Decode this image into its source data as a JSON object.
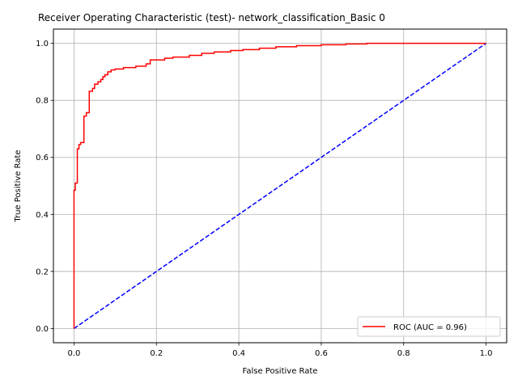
{
  "chart_data": {
    "type": "line",
    "title": "Receiver Operating Characteristic (test)- network_classification_Basic 0",
    "xlabel": "False Positive Rate",
    "ylabel": "True Positive Rate",
    "xlim": [
      -0.05,
      1.05
    ],
    "ylim": [
      -0.05,
      1.05
    ],
    "xticks": [
      "0.0",
      "0.2",
      "0.4",
      "0.6",
      "0.8",
      "1.0"
    ],
    "yticks": [
      "0.0",
      "0.2",
      "0.4",
      "0.6",
      "0.8",
      "1.0"
    ],
    "grid": true,
    "legend_position": "lower-right",
    "series": [
      {
        "name": "ROC (AUC = 0.96)",
        "color": "#ff0000",
        "style": "solid-step",
        "x": [
          0.0,
          0.0,
          0.003,
          0.003,
          0.008,
          0.008,
          0.012,
          0.012,
          0.016,
          0.016,
          0.024,
          0.024,
          0.03,
          0.03,
          0.037,
          0.037,
          0.045,
          0.045,
          0.05,
          0.05,
          0.058,
          0.058,
          0.065,
          0.065,
          0.07,
          0.07,
          0.075,
          0.075,
          0.082,
          0.082,
          0.09,
          0.09,
          0.1,
          0.1,
          0.12,
          0.12,
          0.15,
          0.15,
          0.175,
          0.175,
          0.185,
          0.185,
          0.22,
          0.22,
          0.24,
          0.24,
          0.28,
          0.28,
          0.31,
          0.31,
          0.34,
          0.34,
          0.38,
          0.38,
          0.41,
          0.41,
          0.45,
          0.45,
          0.49,
          0.49,
          0.54,
          0.54,
          0.6,
          0.6,
          0.66,
          0.66,
          0.71,
          0.71,
          1.0
        ],
        "y": [
          0.0,
          0.485,
          0.485,
          0.51,
          0.51,
          0.63,
          0.63,
          0.645,
          0.645,
          0.652,
          0.652,
          0.745,
          0.745,
          0.757,
          0.757,
          0.832,
          0.832,
          0.842,
          0.842,
          0.857,
          0.857,
          0.865,
          0.865,
          0.873,
          0.873,
          0.883,
          0.883,
          0.89,
          0.89,
          0.9,
          0.9,
          0.907,
          0.907,
          0.91,
          0.91,
          0.915,
          0.915,
          0.92,
          0.92,
          0.928,
          0.928,
          0.942,
          0.942,
          0.948,
          0.948,
          0.952,
          0.952,
          0.958,
          0.958,
          0.965,
          0.965,
          0.97,
          0.97,
          0.975,
          0.975,
          0.978,
          0.978,
          0.983,
          0.983,
          0.988,
          0.988,
          0.992,
          0.992,
          0.995,
          0.995,
          0.998,
          0.998,
          1.0,
          1.0
        ]
      },
      {
        "name": "",
        "color": "#0000ff",
        "style": "dashed",
        "x": [
          0.0,
          1.0
        ],
        "y": [
          0.0,
          1.0
        ]
      }
    ]
  }
}
